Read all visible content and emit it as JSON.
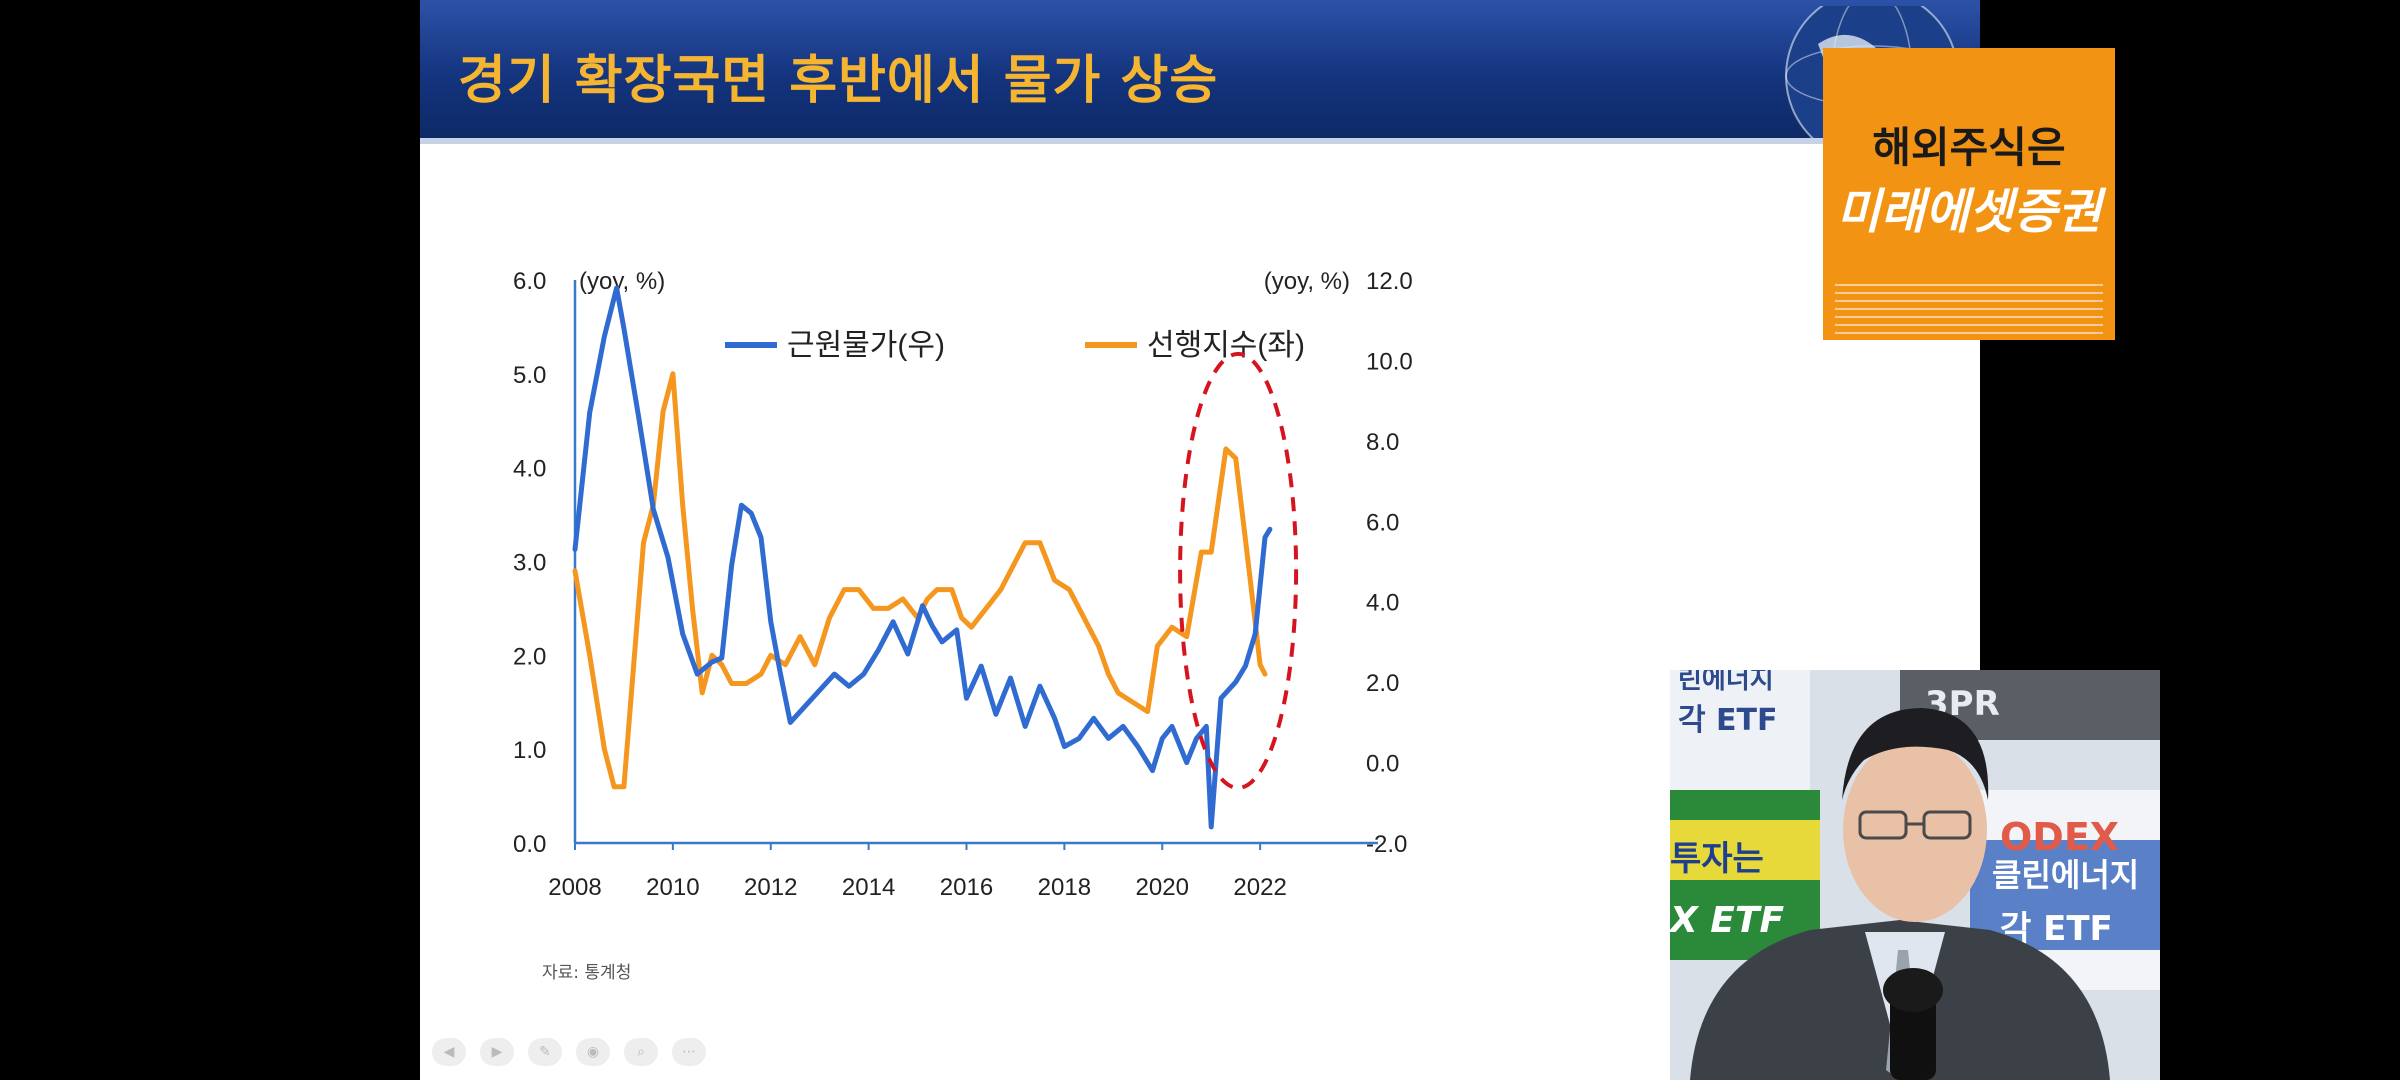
{
  "slide": {
    "title": "경기 확장국면 후반에서 물가 상승",
    "source": "자료: 통계청",
    "toolbar_icons": [
      "back-icon",
      "forward-icon",
      "pen-icon",
      "zoom-icon",
      "search-icon",
      "more-icon"
    ]
  },
  "ad": {
    "line1": "해외주식은",
    "line2": "미래에셋증권"
  },
  "webcam": {
    "backdrop_texts": [
      "린에너지",
      "각 ETF",
      "3PR",
      "투자는",
      "X ETF",
      "ODEX",
      "클린에너지",
      "각 ETF"
    ]
  },
  "colors": {
    "core_cpi": "#2f6bd0",
    "leading_index": "#f5961f",
    "highlight": "#d6141f",
    "title": "#f6b531"
  },
  "chart_data": {
    "type": "line",
    "title": "",
    "left_unit": "(yoy, %)",
    "right_unit": "(yoy, %)",
    "left_ylim": [
      0.0,
      6.0
    ],
    "left_ticks": [
      "0.0",
      "1.0",
      "2.0",
      "3.0",
      "4.0",
      "5.0",
      "6.0"
    ],
    "right_ylim": [
      -2.0,
      12.0
    ],
    "right_ticks": [
      "-2.0",
      "0.0",
      "2.0",
      "4.0",
      "6.0",
      "8.0",
      "10.0",
      "12.0"
    ],
    "x_ticks": [
      "2008",
      "2010",
      "2012",
      "2014",
      "2016",
      "2018",
      "2020",
      "2022"
    ],
    "xlim": [
      2008.0,
      2024.0
    ],
    "legend": [
      "근원물가(우)",
      "선행지수(좌)"
    ],
    "legend_position": "top",
    "highlight": "dashed red ellipse around 2021–2022",
    "series": [
      {
        "name": "근원물가(우)",
        "axis": "right",
        "x": [
          2008.0,
          2008.3,
          2008.6,
          2008.85,
          2009.0,
          2009.3,
          2009.6,
          2009.9,
          2010.2,
          2010.5,
          2010.8,
          2011.0,
          2011.2,
          2011.4,
          2011.6,
          2011.8,
          2012.0,
          2012.2,
          2012.4,
          2012.7,
          2013.0,
          2013.3,
          2013.6,
          2013.9,
          2014.2,
          2014.5,
          2014.8,
          2015.1,
          2015.3,
          2015.5,
          2015.8,
          2016.0,
          2016.3,
          2016.6,
          2016.9,
          2017.2,
          2017.5,
          2017.8,
          2018.0,
          2018.3,
          2018.6,
          2018.9,
          2019.2,
          2019.5,
          2019.8,
          2020.0,
          2020.2,
          2020.5,
          2020.7,
          2020.9,
          2021.0,
          2021.2,
          2021.5,
          2021.7,
          2021.9,
          2022.1,
          2022.2
        ],
        "values": [
          5.3,
          8.7,
          10.6,
          11.8,
          10.8,
          8.6,
          6.3,
          5.1,
          3.2,
          2.2,
          2.5,
          2.6,
          4.9,
          6.4,
          6.2,
          5.6,
          3.5,
          2.2,
          1.0,
          1.4,
          1.8,
          2.2,
          1.9,
          2.2,
          2.8,
          3.5,
          2.7,
          3.9,
          3.4,
          3.0,
          3.3,
          1.6,
          2.4,
          1.2,
          2.1,
          0.9,
          1.9,
          1.1,
          0.4,
          0.6,
          1.1,
          0.6,
          0.9,
          0.4,
          -0.2,
          0.6,
          0.9,
          0.0,
          0.6,
          0.9,
          -1.6,
          1.6,
          2.0,
          2.4,
          3.2,
          5.6,
          5.8
        ]
      },
      {
        "name": "선행지수(좌)",
        "axis": "left",
        "x": [
          2008.0,
          2008.3,
          2008.6,
          2008.8,
          2009.0,
          2009.2,
          2009.4,
          2009.6,
          2009.8,
          2010.0,
          2010.2,
          2010.4,
          2010.6,
          2010.8,
          2011.0,
          2011.2,
          2011.5,
          2011.8,
          2012.0,
          2012.3,
          2012.6,
          2012.9,
          2013.2,
          2013.5,
          2013.8,
          2014.1,
          2014.4,
          2014.7,
          2015.0,
          2015.2,
          2015.4,
          2015.7,
          2015.9,
          2016.1,
          2016.4,
          2016.7,
          2017.0,
          2017.2,
          2017.5,
          2017.8,
          2018.1,
          2018.4,
          2018.7,
          2018.9,
          2019.1,
          2019.4,
          2019.7,
          2019.9,
          2020.2,
          2020.5,
          2020.8,
          2021.0,
          2021.3,
          2021.5,
          2021.8,
          2022.0,
          2022.1
        ],
        "values": [
          2.9,
          2.0,
          1.0,
          0.6,
          0.6,
          1.9,
          3.2,
          3.6,
          4.6,
          5.0,
          3.6,
          2.5,
          1.6,
          2.0,
          1.9,
          1.7,
          1.7,
          1.8,
          2.0,
          1.9,
          2.2,
          1.9,
          2.4,
          2.7,
          2.7,
          2.5,
          2.5,
          2.6,
          2.4,
          2.6,
          2.7,
          2.7,
          2.4,
          2.3,
          2.5,
          2.7,
          3.0,
          3.2,
          3.2,
          2.8,
          2.7,
          2.4,
          2.1,
          1.8,
          1.6,
          1.5,
          1.4,
          2.1,
          2.3,
          2.2,
          3.1,
          3.1,
          4.2,
          4.1,
          2.8,
          1.9,
          1.8
        ]
      }
    ]
  }
}
